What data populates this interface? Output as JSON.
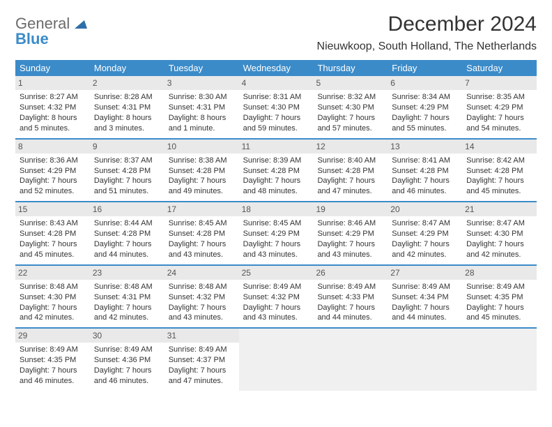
{
  "logo": {
    "word1": "General",
    "word2": "Blue"
  },
  "header": {
    "title": "December 2024",
    "location": "Nieuwkoop, South Holland, The Netherlands"
  },
  "calendar": {
    "days_of_week": [
      "Sunday",
      "Monday",
      "Tuesday",
      "Wednesday",
      "Thursday",
      "Friday",
      "Saturday"
    ],
    "header_bg": "#3b8bc9",
    "header_fg": "#ffffff",
    "daynum_bg": "#e9e9e9",
    "empty_bg": "#f0f0f0",
    "row_border": "#3b8bc9",
    "weeks": [
      [
        {
          "num": "1",
          "sunrise": "Sunrise: 8:27 AM",
          "sunset": "Sunset: 4:32 PM",
          "daylight": "Daylight: 8 hours and 5 minutes."
        },
        {
          "num": "2",
          "sunrise": "Sunrise: 8:28 AM",
          "sunset": "Sunset: 4:31 PM",
          "daylight": "Daylight: 8 hours and 3 minutes."
        },
        {
          "num": "3",
          "sunrise": "Sunrise: 8:30 AM",
          "sunset": "Sunset: 4:31 PM",
          "daylight": "Daylight: 8 hours and 1 minute."
        },
        {
          "num": "4",
          "sunrise": "Sunrise: 8:31 AM",
          "sunset": "Sunset: 4:30 PM",
          "daylight": "Daylight: 7 hours and 59 minutes."
        },
        {
          "num": "5",
          "sunrise": "Sunrise: 8:32 AM",
          "sunset": "Sunset: 4:30 PM",
          "daylight": "Daylight: 7 hours and 57 minutes."
        },
        {
          "num": "6",
          "sunrise": "Sunrise: 8:34 AM",
          "sunset": "Sunset: 4:29 PM",
          "daylight": "Daylight: 7 hours and 55 minutes."
        },
        {
          "num": "7",
          "sunrise": "Sunrise: 8:35 AM",
          "sunset": "Sunset: 4:29 PM",
          "daylight": "Daylight: 7 hours and 54 minutes."
        }
      ],
      [
        {
          "num": "8",
          "sunrise": "Sunrise: 8:36 AM",
          "sunset": "Sunset: 4:29 PM",
          "daylight": "Daylight: 7 hours and 52 minutes."
        },
        {
          "num": "9",
          "sunrise": "Sunrise: 8:37 AM",
          "sunset": "Sunset: 4:28 PM",
          "daylight": "Daylight: 7 hours and 51 minutes."
        },
        {
          "num": "10",
          "sunrise": "Sunrise: 8:38 AM",
          "sunset": "Sunset: 4:28 PM",
          "daylight": "Daylight: 7 hours and 49 minutes."
        },
        {
          "num": "11",
          "sunrise": "Sunrise: 8:39 AM",
          "sunset": "Sunset: 4:28 PM",
          "daylight": "Daylight: 7 hours and 48 minutes."
        },
        {
          "num": "12",
          "sunrise": "Sunrise: 8:40 AM",
          "sunset": "Sunset: 4:28 PM",
          "daylight": "Daylight: 7 hours and 47 minutes."
        },
        {
          "num": "13",
          "sunrise": "Sunrise: 8:41 AM",
          "sunset": "Sunset: 4:28 PM",
          "daylight": "Daylight: 7 hours and 46 minutes."
        },
        {
          "num": "14",
          "sunrise": "Sunrise: 8:42 AM",
          "sunset": "Sunset: 4:28 PM",
          "daylight": "Daylight: 7 hours and 45 minutes."
        }
      ],
      [
        {
          "num": "15",
          "sunrise": "Sunrise: 8:43 AM",
          "sunset": "Sunset: 4:28 PM",
          "daylight": "Daylight: 7 hours and 45 minutes."
        },
        {
          "num": "16",
          "sunrise": "Sunrise: 8:44 AM",
          "sunset": "Sunset: 4:28 PM",
          "daylight": "Daylight: 7 hours and 44 minutes."
        },
        {
          "num": "17",
          "sunrise": "Sunrise: 8:45 AM",
          "sunset": "Sunset: 4:28 PM",
          "daylight": "Daylight: 7 hours and 43 minutes."
        },
        {
          "num": "18",
          "sunrise": "Sunrise: 8:45 AM",
          "sunset": "Sunset: 4:29 PM",
          "daylight": "Daylight: 7 hours and 43 minutes."
        },
        {
          "num": "19",
          "sunrise": "Sunrise: 8:46 AM",
          "sunset": "Sunset: 4:29 PM",
          "daylight": "Daylight: 7 hours and 43 minutes."
        },
        {
          "num": "20",
          "sunrise": "Sunrise: 8:47 AM",
          "sunset": "Sunset: 4:29 PM",
          "daylight": "Daylight: 7 hours and 42 minutes."
        },
        {
          "num": "21",
          "sunrise": "Sunrise: 8:47 AM",
          "sunset": "Sunset: 4:30 PM",
          "daylight": "Daylight: 7 hours and 42 minutes."
        }
      ],
      [
        {
          "num": "22",
          "sunrise": "Sunrise: 8:48 AM",
          "sunset": "Sunset: 4:30 PM",
          "daylight": "Daylight: 7 hours and 42 minutes."
        },
        {
          "num": "23",
          "sunrise": "Sunrise: 8:48 AM",
          "sunset": "Sunset: 4:31 PM",
          "daylight": "Daylight: 7 hours and 42 minutes."
        },
        {
          "num": "24",
          "sunrise": "Sunrise: 8:48 AM",
          "sunset": "Sunset: 4:32 PM",
          "daylight": "Daylight: 7 hours and 43 minutes."
        },
        {
          "num": "25",
          "sunrise": "Sunrise: 8:49 AM",
          "sunset": "Sunset: 4:32 PM",
          "daylight": "Daylight: 7 hours and 43 minutes."
        },
        {
          "num": "26",
          "sunrise": "Sunrise: 8:49 AM",
          "sunset": "Sunset: 4:33 PM",
          "daylight": "Daylight: 7 hours and 44 minutes."
        },
        {
          "num": "27",
          "sunrise": "Sunrise: 8:49 AM",
          "sunset": "Sunset: 4:34 PM",
          "daylight": "Daylight: 7 hours and 44 minutes."
        },
        {
          "num": "28",
          "sunrise": "Sunrise: 8:49 AM",
          "sunset": "Sunset: 4:35 PM",
          "daylight": "Daylight: 7 hours and 45 minutes."
        }
      ],
      [
        {
          "num": "29",
          "sunrise": "Sunrise: 8:49 AM",
          "sunset": "Sunset: 4:35 PM",
          "daylight": "Daylight: 7 hours and 46 minutes."
        },
        {
          "num": "30",
          "sunrise": "Sunrise: 8:49 AM",
          "sunset": "Sunset: 4:36 PM",
          "daylight": "Daylight: 7 hours and 46 minutes."
        },
        {
          "num": "31",
          "sunrise": "Sunrise: 8:49 AM",
          "sunset": "Sunset: 4:37 PM",
          "daylight": "Daylight: 7 hours and 47 minutes."
        },
        null,
        null,
        null,
        null
      ]
    ]
  }
}
